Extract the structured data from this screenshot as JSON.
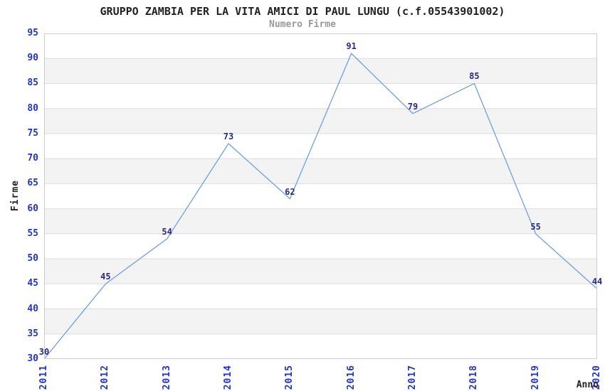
{
  "chart_data": {
    "type": "line",
    "title": "GRUPPO ZAMBIA PER LA VITA AMICI DI PAUL LUNGU (c.f.05543901002)",
    "subtitle": "Numero Firme",
    "xlabel": "Anno",
    "ylabel": "Firme",
    "categories": [
      "2011",
      "2012",
      "2013",
      "2014",
      "2015",
      "2016",
      "2017",
      "2018",
      "2019",
      "2020"
    ],
    "values": [
      30,
      45,
      54,
      73,
      62,
      91,
      79,
      85,
      55,
      44
    ],
    "ylim": [
      30,
      95
    ],
    "ytick_step": 5,
    "grid": true,
    "legend_position": "none",
    "band_colors": [
      "#ffffff",
      "#f3f3f3"
    ],
    "colors": {
      "line": "#6FA0E2",
      "value_label": "#2a2a85",
      "tick_label": "#2233cc",
      "grid": "#dedede",
      "border": "#cccccc",
      "title": "#222222",
      "subtitle": "#999999",
      "axis_title": "#222222",
      "background": "#ffffff"
    }
  }
}
